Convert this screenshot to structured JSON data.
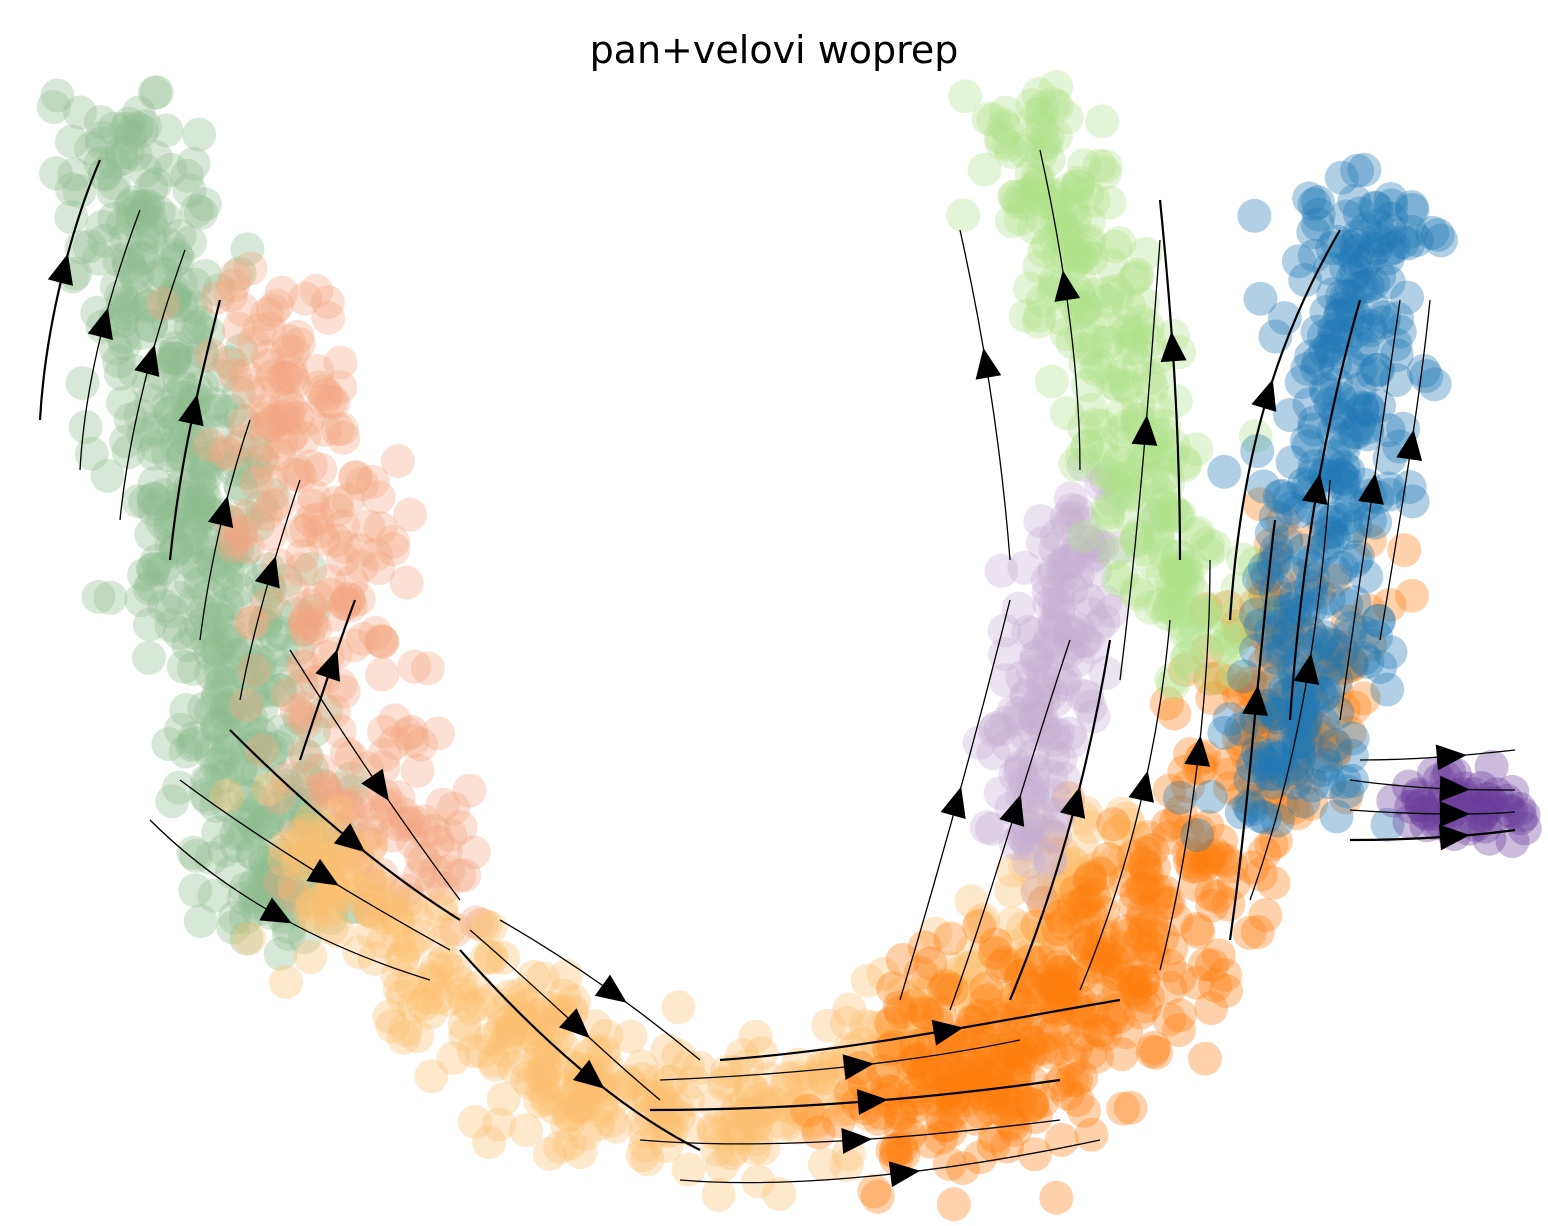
{
  "chart_data": {
    "type": "scatter",
    "title": "pan+velovi woprep",
    "xlabel": "",
    "ylabel": "",
    "axes_visible": false,
    "grid": false,
    "legend": "none",
    "overlay": "velocity streamlines with arrowheads",
    "clusters": [
      {
        "color": "#8fbc8f",
        "centroid": [
          0.1,
          0.62
        ],
        "spread": [
          0.05,
          0.25
        ],
        "direction": "up"
      },
      {
        "color": "#f4a582",
        "centroid": [
          0.16,
          0.52
        ],
        "spread": [
          0.06,
          0.22
        ],
        "direction": "down"
      },
      {
        "color": "#fdbf6f",
        "centroid": [
          0.4,
          0.17
        ],
        "spread": [
          0.16,
          0.08
        ],
        "direction": "right"
      },
      {
        "color": "#ff7f0e",
        "centroid": [
          0.75,
          0.27
        ],
        "spread": [
          0.12,
          0.16
        ],
        "direction": "up"
      },
      {
        "color": "#c5b0d5",
        "centroid": [
          0.68,
          0.43
        ],
        "spread": [
          0.04,
          0.12
        ],
        "direction": "up"
      },
      {
        "color": "#aee28a",
        "centroid": [
          0.72,
          0.74
        ],
        "spread": [
          0.05,
          0.18
        ],
        "direction": "up"
      },
      {
        "color": "#1f77b4",
        "centroid": [
          0.88,
          0.66
        ],
        "spread": [
          0.05,
          0.2
        ],
        "direction": "up"
      },
      {
        "color": "#6a3d9a",
        "centroid": [
          0.95,
          0.36
        ],
        "spread": [
          0.04,
          0.02
        ],
        "direction": "right"
      }
    ]
  }
}
